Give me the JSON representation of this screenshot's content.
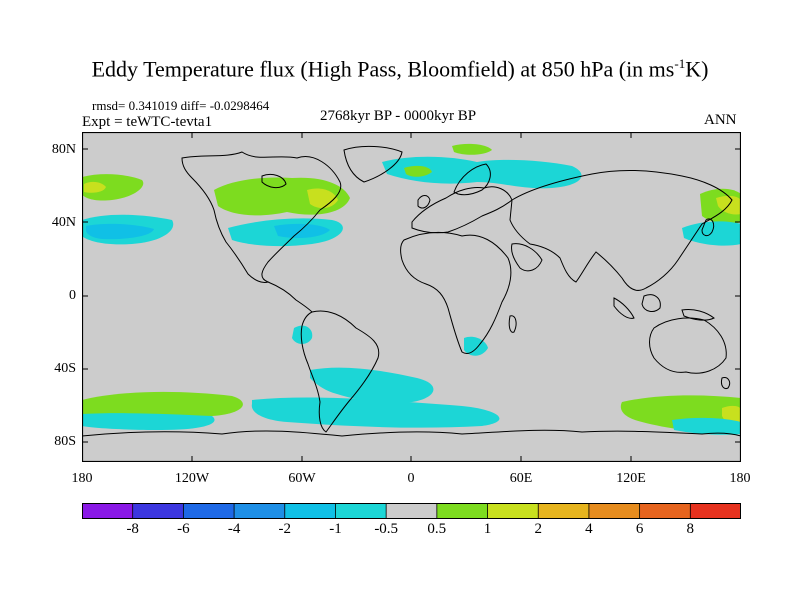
{
  "title": {
    "main": "Eddy Temperature flux (High Pass, Bloomfield) at 850 hPa (in ms",
    "sup": "-1",
    "tail": "K)"
  },
  "stats": {
    "text": "rmsd= 0.341019 diff= -0.0298464"
  },
  "experiment": "Expt = teWTC-tevta1",
  "period": "2768kyr BP - 0000kyr BP",
  "season": "ANN",
  "lat_labels": [
    "80N",
    "40N",
    "0",
    "40S",
    "80S"
  ],
  "lon_labels": [
    "180",
    "120W",
    "60W",
    "0",
    "60E",
    "120E",
    "180"
  ],
  "colorbar": {
    "labels": [
      "-8",
      "-6",
      "-4",
      "-2",
      "-1",
      "-0.5",
      "0.5",
      "1",
      "2",
      "4",
      "6",
      "8"
    ],
    "colors": [
      "#8a19e6",
      "#3c37e0",
      "#1e69e6",
      "#1e8fe6",
      "#10c0e6",
      "#1cd6d6",
      "#cccccc",
      "#7ddc1f",
      "#c8e01e",
      "#e6b41e",
      "#e68c1e",
      "#e6641e",
      "#e6321e"
    ]
  },
  "map_colors": {
    "ocean_land": "#cccccc",
    "coast": "#000000"
  }
}
